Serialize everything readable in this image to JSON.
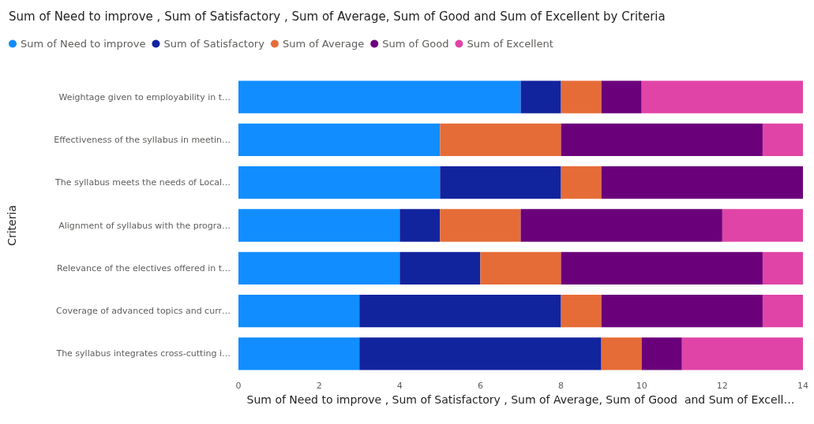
{
  "chart_data": {
    "type": "bar",
    "orientation": "horizontal",
    "stacked": true,
    "title": "Sum of Need to improve , Sum of Satisfactory , Sum of Average, Sum of Good and Sum of Excellent by Criteria",
    "xlabel": "Sum of Need to improve , Sum of Satisfactory , Sum of Average, Sum of Good  and Sum of Excell…",
    "ylabel": "Criteria",
    "categories": [
      "Weightage given to employability in t…",
      "Effectiveness of the syllabus in meetin…",
      "The syllabus meets the needs of Local…",
      "Alignment of syllabus with the progra…",
      "Relevance of the electives offered in t…",
      "Coverage of advanced topics and curr…",
      "The syllabus integrates cross-cutting i…"
    ],
    "series": [
      {
        "name": "Sum of Need to improve",
        "color": "#118dff",
        "values": [
          7,
          5,
          5,
          4,
          4,
          3,
          3
        ]
      },
      {
        "name": "Sum of Satisfactory",
        "color": "#12239e",
        "values": [
          1,
          0,
          3,
          1,
          2,
          5,
          6
        ]
      },
      {
        "name": "Sum of Average",
        "color": "#e66c37",
        "values": [
          1,
          3,
          1,
          2,
          2,
          1,
          1
        ]
      },
      {
        "name": "Sum of Good",
        "color": "#6b007b",
        "values": [
          1,
          5,
          5,
          5,
          5,
          4,
          1
        ]
      },
      {
        "name": "Sum of Excellent",
        "color": "#e044a7",
        "values": [
          4,
          1,
          0,
          2,
          1,
          1,
          3
        ]
      }
    ],
    "xlim": [
      0,
      14
    ],
    "xticks": [
      0,
      2,
      4,
      6,
      8,
      10,
      12,
      14
    ],
    "grid": false,
    "legend": "top left"
  }
}
